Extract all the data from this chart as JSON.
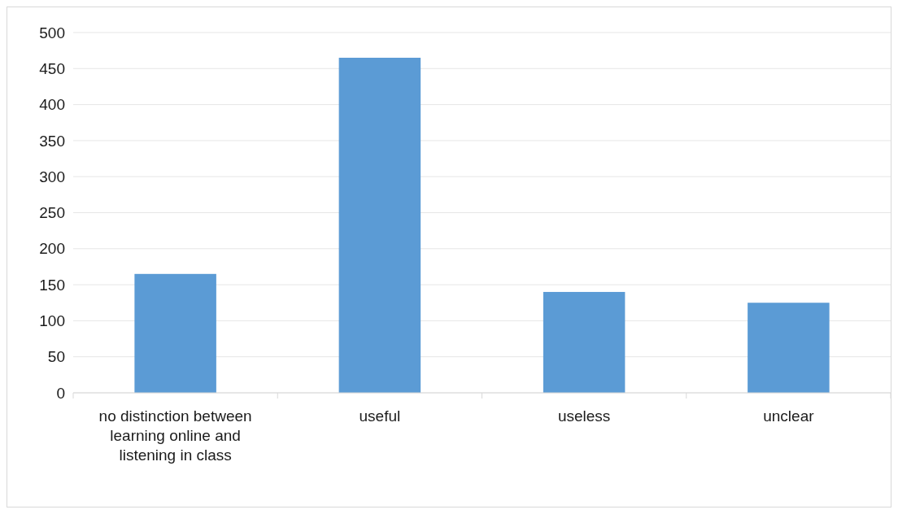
{
  "chart_data": {
    "type": "bar",
    "categories": [
      "no distinction between learning online and listening in class",
      "useful",
      "useless",
      "unclear"
    ],
    "values": [
      165,
      465,
      140,
      125
    ],
    "color": "#5b9bd5",
    "ylim": [
      0,
      500
    ],
    "yticks": [
      0,
      50,
      100,
      150,
      200,
      250,
      300,
      350,
      400,
      450,
      500
    ],
    "grid": "y"
  }
}
